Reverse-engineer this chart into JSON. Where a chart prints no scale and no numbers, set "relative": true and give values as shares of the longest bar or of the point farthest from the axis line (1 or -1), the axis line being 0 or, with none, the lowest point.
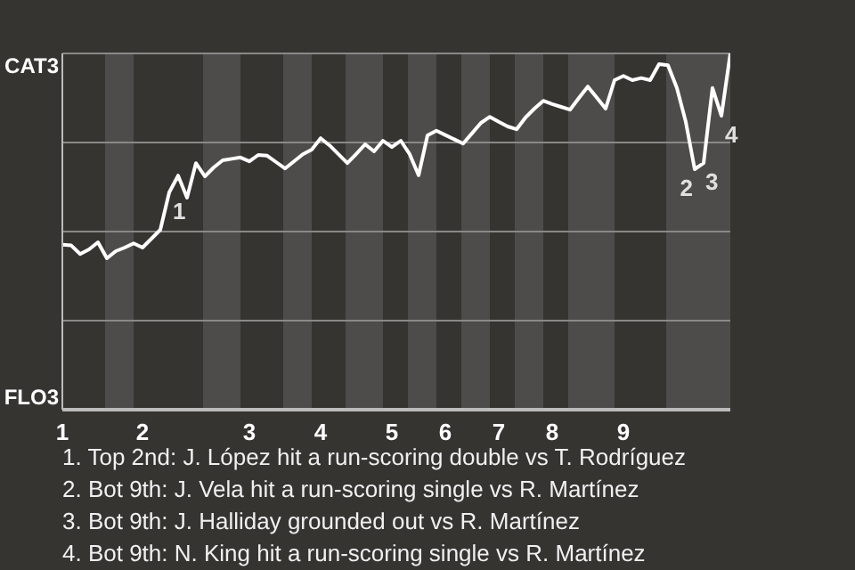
{
  "chart_data": {
    "type": "line",
    "relative": true,
    "categories": [
      "1",
      null,
      null,
      null,
      null,
      null,
      null,
      null,
      null,
      "2",
      null,
      null,
      null,
      null,
      null,
      null,
      null,
      null,
      null,
      null,
      null,
      "3",
      null,
      null,
      null,
      null,
      null,
      null,
      null,
      "4",
      null,
      null,
      null,
      null,
      null,
      null,
      null,
      "5",
      null,
      null,
      null,
      null,
      null,
      "6",
      null,
      null,
      null,
      null,
      null,
      "7",
      null,
      null,
      null,
      null,
      null,
      "8",
      null,
      null,
      null,
      null,
      null,
      null,
      null,
      "9",
      null,
      null,
      null,
      null,
      null,
      null,
      null,
      null,
      null,
      null,
      null,
      null
    ],
    "series": [
      {
        "color": "#ffffff",
        "values": [
          0.463,
          0.461,
          0.437,
          0.45,
          0.47,
          0.425,
          0.445,
          0.455,
          0.467,
          0.455,
          0.48,
          0.505,
          0.61,
          0.657,
          0.595,
          0.692,
          0.655,
          0.68,
          0.7,
          0.704,
          0.708,
          0.697,
          0.715,
          0.713,
          0.695,
          0.677,
          0.697,
          0.717,
          0.73,
          0.762,
          0.742,
          0.717,
          0.692,
          0.718,
          0.745,
          0.725,
          0.755,
          0.737,
          0.755,
          0.717,
          0.658,
          0.77,
          0.783,
          0.771,
          0.759,
          0.747,
          0.776,
          0.805,
          0.822,
          0.808,
          0.795,
          0.787,
          0.82,
          0.845,
          0.867,
          0.858,
          0.85,
          0.842,
          0.875,
          0.907,
          0.876,
          0.845,
          0.925,
          0.937,
          0.925,
          0.931,
          0.925,
          0.97,
          0.967,
          0.903,
          0.808,
          0.675,
          0.692,
          0.903,
          0.825,
          1
        ]
      }
    ],
    "grid": "y",
    "legend": false,
    "marker": "none",
    "line_style": "solid",
    "annotations": [
      "CAT3",
      "FLO3",
      {
        "text": "1",
        "y": 0.61
      },
      {
        "text": "2",
        "y": 0.675
      },
      {
        "text": "3",
        "y": 0.692
      },
      {
        "text": "4",
        "y": 0.825
      },
      "1. Top 2nd: J. López hit a run-scoring double vs T. Rodríguez",
      "2. Bot 9th: J. Vela hit a run-scoring single vs R. Martínez",
      "3. Bot 9th: J. Halliday grounded out vs R. Martínez",
      "4. Bot 9th: N. King hit a run-scoring single vs R. Martínez"
    ]
  }
}
